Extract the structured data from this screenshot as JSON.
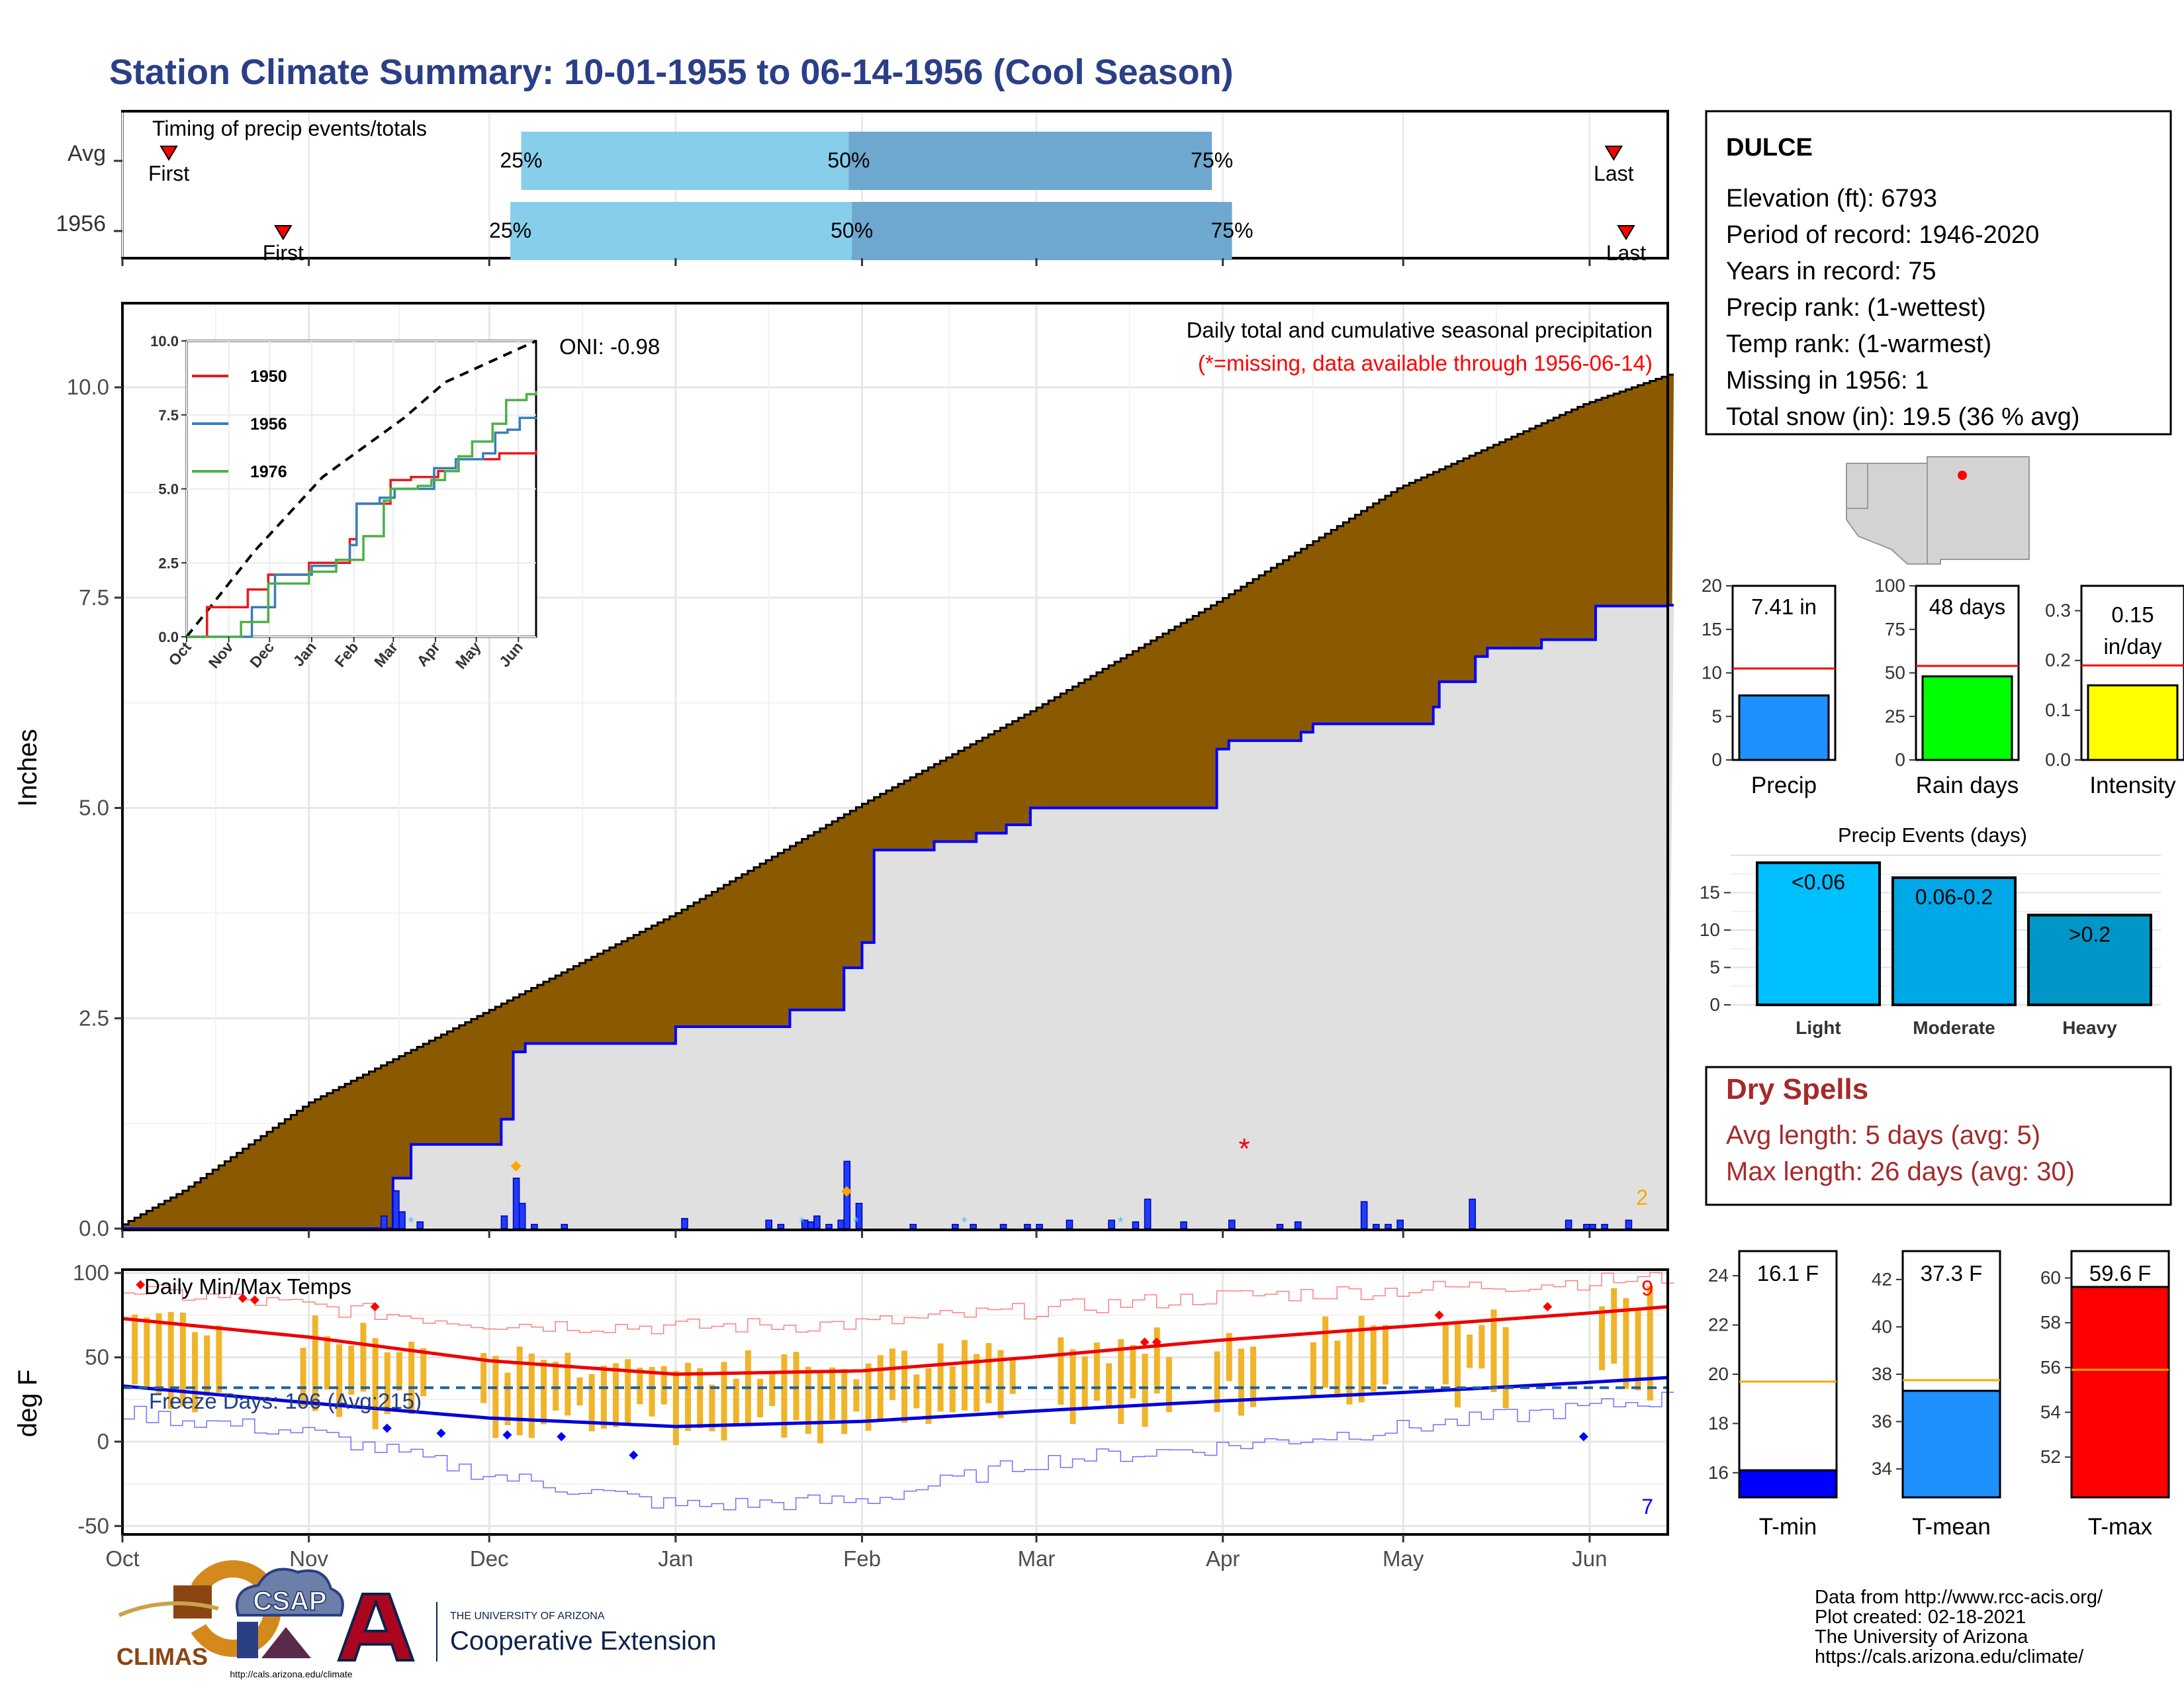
{
  "title": "Station Climate Summary: 10-01-1955 to 06-14-1956 (Cool Season)",
  "colors": {
    "title": "#2b3f87",
    "precip_cum_avg": "#8b5a00",
    "precip_cum_obs": "#e0e0e0",
    "line_blue": "#0000ff",
    "timing_light": "#87ceeb",
    "timing_dark": "#6fa8cf",
    "temp_bar": "#f0b429",
    "missing": "#ff0000",
    "dry_spell": "#a52a2a"
  },
  "timing_panel": {
    "label": "Timing of precip events/totals",
    "rows": [
      {
        "label": "Avg",
        "first_label": "First",
        "last_label": "Last",
        "first": 0.03,
        "last": 0.965,
        "p25": 0.258,
        "p50": 0.47,
        "p75": 0.705,
        "p25_label": "25%",
        "p50_label": "50%",
        "p75_label": "75%"
      },
      {
        "label": "1956",
        "first_label": "First",
        "last_label": "Last",
        "first": 0.104,
        "last": 0.973,
        "p25": 0.251,
        "p50": 0.472,
        "p75": 0.718,
        "p25_label": "25%",
        "p50_label": "50%",
        "p75_label": "75%"
      }
    ]
  },
  "precip_panel": {
    "ylabel": "Inches",
    "annotation_title": "Daily total and cumulative seasonal precipitation",
    "annotation_missing": "(*=missing, data available through 1956-06-14)",
    "oni_label": "ONI: -0.98",
    "corner_count": "2",
    "missing_marker": "*"
  },
  "temp_panel": {
    "ylabel": "deg F",
    "label": "Daily Min/Max Temps",
    "freeze_label": "Freeze Days: 106 (Avg:215)",
    "count_top": "9",
    "count_bottom": "7"
  },
  "station_box": {
    "name": "DULCE",
    "lines": [
      "Elevation (ft): 6793",
      "Period of record: 1946-2020",
      "Years in record: 75",
      "Precip rank:  (1-wettest)",
      "Temp rank:  (1-warmest)",
      "Missing in 1956: 1",
      "Total snow (in): 19.5 (36 % avg)"
    ]
  },
  "small_bars": [
    {
      "name": "Precip",
      "value": 7.41,
      "avg": 10.5,
      "label": "7.41 in",
      "ymax": 20,
      "ticks": [
        "0",
        "5",
        "10",
        "15",
        "20"
      ],
      "color": "#1e90ff"
    },
    {
      "name": "Rain days",
      "value": 48,
      "avg": 54,
      "label": "48 days",
      "ymax": 100,
      "ticks": [
        "0",
        "25",
        "50",
        "75",
        "100"
      ],
      "color": "#00ff00"
    },
    {
      "name": "Intensity",
      "value": 0.15,
      "avg": 0.19,
      "label": "0.15",
      "label2": "in/day",
      "ymax": 0.35,
      "ticks": [
        "0.0",
        "0.1",
        "0.2",
        "0.3"
      ],
      "color": "#ffff00"
    }
  ],
  "precip_events": {
    "title": "Precip Events (days)",
    "ymax": 20,
    "ticks": [
      "0",
      "5",
      "10",
      "15"
    ],
    "bars": [
      {
        "name": "Light",
        "value": 19,
        "label": "<0.06",
        "color": "#00bfff"
      },
      {
        "name": "Moderate",
        "value": 17,
        "label": "0.06-0.2",
        "color": "#00a8e8"
      },
      {
        "name": "Heavy",
        "value": 12,
        "label": ">0.2",
        "color": "#0096c8"
      }
    ]
  },
  "dry_spells": {
    "title": "Dry Spells",
    "avg_line": "Avg length: 5 days (avg: 5)",
    "max_line": "Max length: 26 days (avg: 30)"
  },
  "temp_bars": [
    {
      "name": "T-min",
      "value": 16.1,
      "avg": 19.7,
      "label": "16.1 F",
      "ymin": 15,
      "ymax": 25,
      "ticks": [
        "16",
        "18",
        "20",
        "22",
        "24"
      ],
      "color": "#0000ff"
    },
    {
      "name": "T-mean",
      "value": 37.3,
      "avg": 37.75,
      "label": "37.3 F",
      "ymin": 32.8,
      "ymax": 43.2,
      "ticks": [
        "34",
        "36",
        "38",
        "40",
        "42"
      ],
      "color": "#1e90ff"
    },
    {
      "name": "T-max",
      "value": 59.6,
      "avg": 55.9,
      "label": "59.6 F",
      "ymin": 50.2,
      "ymax": 61.2,
      "ticks": [
        "52",
        "54",
        "56",
        "58",
        "60"
      ],
      "color": "#ff0000"
    }
  ],
  "footer": {
    "lines": [
      "Data from http://www.rcc-acis.org/",
      "Plot created: 02-18-2021",
      "The University of Arizona",
      "https://cals.arizona.edu/climate/"
    ],
    "logo_climas": "CLIMAS",
    "logo_csap": "CSAP",
    "logo_csap_url": "http://cals.arizona.edu/climate",
    "logo_ua_small": "THE UNIVERSITY OF ARIZONA",
    "logo_ua_big": "Cooperative Extension"
  },
  "chart_data": [
    {
      "type": "area",
      "title": "Daily total and cumulative seasonal precipitation",
      "ylabel": "Inches",
      "ylim": [
        0,
        11
      ],
      "yticks": [
        0,
        2.5,
        5.0,
        7.5,
        10.0
      ],
      "x_tick_labels": [
        "Oct",
        "Nov",
        "Dec",
        "Jan",
        "Feb",
        "Mar",
        "Apr",
        "May",
        "Jun"
      ],
      "days_total": 257,
      "series": [
        {
          "name": "avg_cumulative",
          "x": [
            0,
            10,
            31,
            61,
            92,
            123,
            151,
            182,
            212,
            243,
            257
          ],
          "values": [
            0.05,
            0.45,
            1.5,
            2.6,
            3.75,
            5.05,
            6.15,
            7.45,
            8.8,
            9.8,
            10.15
          ]
        },
        {
          "name": "1956_cumulative",
          "x": [
            0,
            43,
            45,
            48,
            53,
            63,
            65,
            67,
            92,
            110,
            111,
            113,
            120,
            123,
            125,
            135,
            141,
            142,
            147,
            150,
            151,
            153,
            172,
            182,
            184,
            194,
            196,
            198,
            218,
            219,
            225,
            227,
            236,
            245,
            257
          ],
          "values": [
            0,
            0,
            0.6,
            1.0,
            1.0,
            1.3,
            2.1,
            2.2,
            2.4,
            2.4,
            2.6,
            2.6,
            3.1,
            3.4,
            4.5,
            4.6,
            4.6,
            4.7,
            4.8,
            4.8,
            5.0,
            5.0,
            5.0,
            5.7,
            5.8,
            5.8,
            5.9,
            6.0,
            6.2,
            6.5,
            6.8,
            6.9,
            7.0,
            7.4,
            7.41
          ]
        },
        {
          "name": "daily",
          "x": [
            43,
            45,
            46,
            49,
            63,
            65,
            66,
            68,
            73,
            93,
            107,
            109,
            113,
            114,
            115,
            117,
            119,
            120,
            122,
            131,
            138,
            141,
            146,
            150,
            152,
            157,
            164,
            168,
            170,
            176,
            184,
            192,
            195,
            206,
            208,
            210,
            212,
            224,
            240,
            243,
            244,
            246,
            250
          ],
          "values": [
            0.15,
            0.45,
            0.2,
            0.08,
            0.15,
            0.6,
            0.3,
            0.05,
            0.05,
            0.12,
            0.1,
            0.05,
            0.1,
            0.08,
            0.15,
            0.05,
            0.1,
            0.8,
            0.3,
            0.05,
            0.05,
            0.05,
            0.05,
            0.05,
            0.05,
            0.1,
            0.1,
            0.08,
            0.35,
            0.08,
            0.1,
            0.05,
            0.08,
            0.32,
            0.05,
            0.05,
            0.1,
            0.35,
            0.1,
            0.05,
            0.05,
            0.05,
            0.1
          ]
        }
      ]
    },
    {
      "type": "line",
      "title": "",
      "ylim": [
        0,
        10
      ],
      "yticks": [
        "0.0",
        "2.5",
        "5.0",
        "7.5",
        "10.0"
      ],
      "x_tick_labels": [
        "Oct",
        "Nov",
        "Dec",
        "Jan",
        "Feb",
        "Mar",
        "Apr",
        "May",
        "Jun"
      ],
      "series": [
        {
          "name": "avg",
          "x": [
            0,
            50,
            100,
            160,
            190,
            257
          ],
          "values": [
            0,
            2.9,
            5.4,
            7.4,
            8.6,
            10.0
          ]
        },
        {
          "name": "1950",
          "color": "#e41a1c",
          "x": [
            0,
            15,
            45,
            60,
            90,
            120,
            125,
            150,
            165,
            185,
            200,
            230,
            257
          ],
          "values": [
            0,
            1.0,
            1.6,
            2.1,
            2.5,
            3.3,
            4.5,
            5.3,
            5.4,
            5.6,
            6.0,
            6.2,
            6.3
          ]
        },
        {
          "name": "1956",
          "color": "#377eb8",
          "x": [
            0,
            43,
            48,
            65,
            92,
            110,
            120,
            125,
            142,
            153,
            172,
            182,
            198,
            218,
            227,
            236,
            245,
            257
          ],
          "values": [
            0,
            0,
            1.0,
            2.1,
            2.4,
            2.6,
            3.1,
            4.5,
            4.7,
            5.0,
            5.0,
            5.7,
            6.0,
            6.2,
            6.9,
            7.0,
            7.4,
            7.41
          ]
        },
        {
          "name": "1976",
          "color": "#4daf4a",
          "x": [
            0,
            40,
            60,
            90,
            110,
            130,
            145,
            150,
            170,
            180,
            190,
            200,
            210,
            225,
            235,
            250,
            257
          ],
          "values": [
            0,
            0.5,
            1.8,
            2.2,
            2.6,
            3.4,
            4.6,
            5.0,
            5.1,
            5.3,
            5.6,
            6.1,
            6.6,
            7.2,
            8.0,
            8.2,
            8.3
          ]
        }
      ]
    },
    {
      "type": "line",
      "title": "Daily Min/Max Temps",
      "ylabel": "deg F",
      "ylim": [
        -55,
        102
      ],
      "yticks": [
        -50,
        0,
        50,
        100
      ],
      "x_tick_labels": [
        "Oct",
        "Nov",
        "Dec",
        "Jan",
        "Feb",
        "Mar",
        "Apr",
        "May",
        "Jun"
      ],
      "freeze_line": 32,
      "series": [
        {
          "name": "avg_max",
          "x": [
            0,
            31,
            61,
            92,
            123,
            151,
            182,
            212,
            243,
            257
          ],
          "values": [
            73,
            62,
            48,
            40,
            42,
            50,
            60,
            68,
            76,
            80
          ]
        },
        {
          "name": "avg_min",
          "x": [
            0,
            31,
            61,
            92,
            123,
            151,
            182,
            212,
            243,
            257
          ],
          "values": [
            33,
            23,
            14,
            9,
            12,
            18,
            24,
            29,
            35,
            38
          ]
        },
        {
          "name": "record_max",
          "x": [
            0,
            31,
            61,
            92,
            123,
            151,
            182,
            212,
            243,
            257
          ],
          "values": [
            90,
            80,
            70,
            68,
            70,
            78,
            86,
            90,
            95,
            97
          ]
        },
        {
          "name": "record_min",
          "x": [
            0,
            31,
            61,
            92,
            123,
            151,
            182,
            212,
            243,
            257
          ],
          "values": [
            17,
            5,
            -20,
            -38,
            -35,
            -12,
            -3,
            8,
            20,
            26
          ]
        }
      ]
    }
  ]
}
